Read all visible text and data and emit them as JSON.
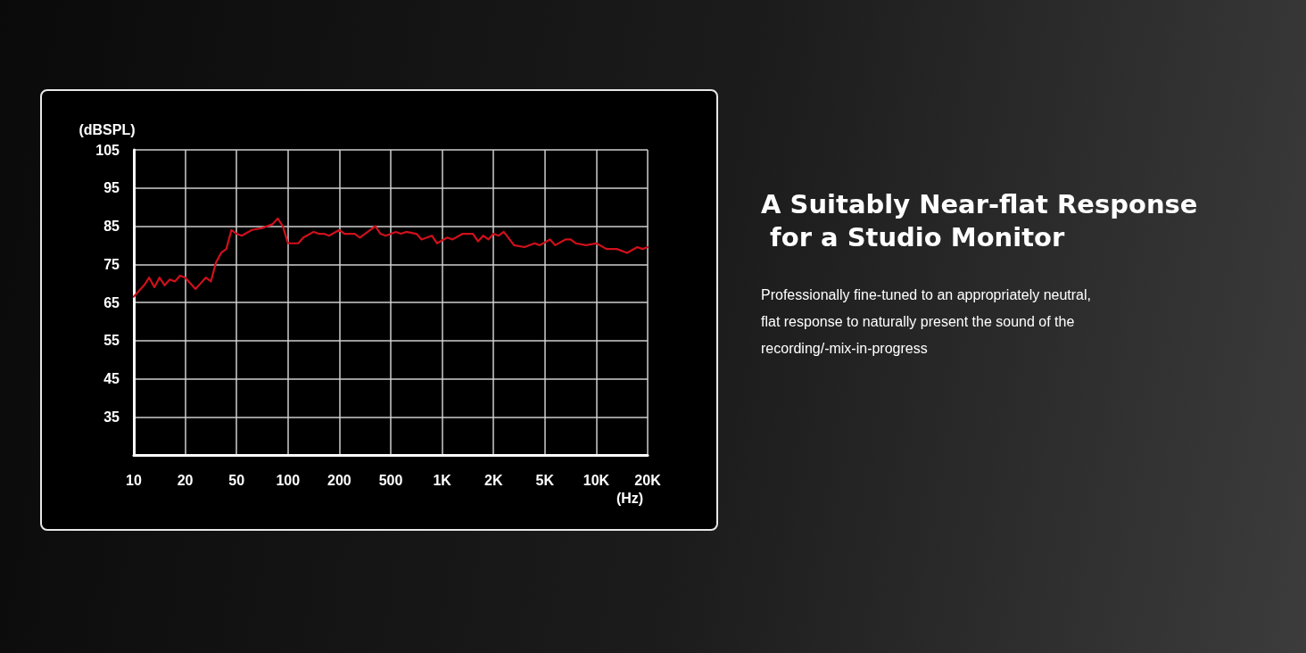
{
  "chart_data": {
    "type": "line",
    "title": "A Suitably Near-flat Response for a Studio Monitor",
    "subtitle": "Professionally fine-tuned to an appropriately neutral, flat response to naturally present the sound of the recording/-mix-in-progress",
    "ylabel": "(dBSPL)",
    "xlabel": "(Hz)",
    "categories": [
      "10",
      null,
      null,
      null,
      null,
      null,
      null,
      null,
      null,
      null,
      "20",
      null,
      null,
      null,
      null,
      null,
      null,
      null,
      null,
      null,
      "50",
      null,
      null,
      null,
      null,
      null,
      null,
      null,
      null,
      null,
      "100",
      null,
      null,
      null,
      null,
      null,
      null,
      null,
      null,
      null,
      "200",
      null,
      null,
      null,
      null,
      null,
      null,
      null,
      null,
      null,
      "500",
      null,
      null,
      null,
      null,
      null,
      null,
      null,
      null,
      null,
      "1K",
      null,
      null,
      null,
      null,
      null,
      null,
      null,
      null,
      null,
      "2K",
      null,
      null,
      null,
      null,
      null,
      null,
      null,
      null,
      null,
      "5K",
      null,
      null,
      null,
      null,
      null,
      null,
      null,
      null,
      null,
      "10K",
      null,
      null,
      null,
      null,
      null,
      null,
      null,
      null,
      null,
      "20K"
    ],
    "series": [
      {
        "color": "#d0101c",
        "values": [
          66.5,
          null,
          69.5,
          71.5,
          69,
          71.5,
          69.5,
          71,
          70.5,
          72,
          71.5,
          null,
          68.5,
          70,
          71.5,
          70.5,
          75.5,
          78,
          79,
          84,
          83,
          82.5,
          null,
          84,
          null,
          84.5,
          null,
          85.5,
          87,
          85,
          80.5,
          null,
          80.5,
          82,
          null,
          83.5,
          83,
          83,
          82.5,
          null,
          84,
          83,
          null,
          83,
          82,
          null,
          84,
          85,
          83,
          82.5,
          null,
          83.5,
          83,
          83.5,
          null,
          83,
          81.5,
          null,
          82.5,
          80.5,
          null,
          82,
          81.5,
          null,
          83,
          null,
          83,
          81,
          82.5,
          81.5,
          83,
          82.5,
          83.5,
          null,
          80,
          null,
          79.5,
          null,
          80.5,
          80,
          null,
          81.5,
          80,
          null,
          81.5,
          81.5,
          80.5,
          null,
          80,
          null,
          80.5,
          null,
          79,
          null,
          79,
          null,
          78,
          null,
          79.5,
          79,
          79.5
        ]
      }
    ],
    "ylim": [
      25,
      105
    ],
    "yticks": [
      35,
      45,
      55,
      65,
      75,
      85,
      95,
      105
    ],
    "grid": true,
    "legend": false,
    "marker": "none",
    "line_style": "solid"
  }
}
